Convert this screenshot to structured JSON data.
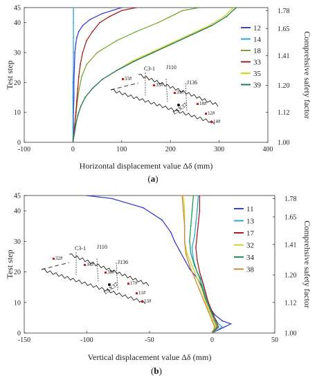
{
  "chart_data": [
    {
      "type": "line",
      "panel": "a",
      "caption_prefix": "(",
      "caption_letter": "a",
      "caption_suffix": ")",
      "xlabel": "Horizontal displacement value Δδ (mm)",
      "ylabel": "Test step",
      "y2label": "Comprehsive safety factor",
      "xlim": [
        -100,
        400
      ],
      "ylim": [
        0,
        45
      ],
      "xticks": [
        "-100",
        "0",
        "100",
        "200",
        "300",
        "400"
      ],
      "yticks": [
        "0",
        "10",
        "20",
        "30",
        "40",
        "45"
      ],
      "y2ticks": [
        {
          "step": 0,
          "label": "1.00"
        },
        {
          "step": 10,
          "label": "1.12"
        },
        {
          "step": 19,
          "label": "1.20"
        },
        {
          "step": 29,
          "label": "1.41"
        },
        {
          "step": 38,
          "label": "1.65"
        },
        {
          "step": 44,
          "label": "1.78"
        }
      ],
      "legend_position": "right",
      "series": [
        {
          "name": "12",
          "color": "#3a3fd6",
          "x": [
            0,
            1,
            1,
            2,
            2,
            3,
            4,
            6,
            8,
            12,
            20,
            35,
            60,
            100
          ],
          "y": [
            0,
            5,
            10,
            15,
            20,
            25,
            30,
            33,
            35,
            37,
            39,
            41,
            43,
            45
          ]
        },
        {
          "name": "14",
          "color": "#29a7d6",
          "x": [
            0,
            0,
            0,
            0,
            0,
            1,
            1,
            1,
            1,
            1,
            1
          ],
          "y": [
            0,
            5,
            10,
            15,
            20,
            25,
            30,
            35,
            40,
            43,
            45
          ]
        },
        {
          "name": "18",
          "color": "#7aa62e",
          "x": [
            0,
            2,
            4,
            6,
            8,
            10,
            13,
            18,
            28,
            50,
            90,
            130,
            175,
            200,
            225,
            260
          ],
          "y": [
            0,
            3,
            6,
            9,
            12,
            15,
            18,
            22,
            26,
            30,
            34,
            37,
            40,
            42,
            44,
            45
          ]
        },
        {
          "name": "33",
          "color": "#a51d1d",
          "x": [
            0,
            2,
            4,
            6,
            8,
            10,
            12,
            15,
            20,
            28,
            40,
            55,
            75,
            100,
            130
          ],
          "y": [
            0,
            3,
            6,
            10,
            14,
            18,
            22,
            26,
            30,
            34,
            37,
            40,
            42,
            44,
            45
          ]
        },
        {
          "name": "35",
          "color": "#d2d21d",
          "x": [
            0,
            3,
            6,
            10,
            16,
            25,
            40,
            60,
            90,
            120,
            160,
            200,
            240,
            280,
            310,
            330
          ],
          "y": [
            0,
            3,
            6,
            9,
            12,
            15,
            18,
            21,
            24,
            27,
            30,
            33,
            36,
            39,
            42,
            45
          ]
        },
        {
          "name": "39",
          "color": "#1d7a5a",
          "x": [
            0,
            3,
            6,
            10,
            16,
            25,
            40,
            60,
            90,
            125,
            165,
            205,
            245,
            285,
            315,
            335
          ],
          "y": [
            0,
            3,
            6,
            9,
            12,
            15,
            18,
            21,
            24,
            27,
            30,
            33,
            36,
            39,
            42,
            45
          ]
        }
      ],
      "inset": {
        "labels": [
          {
            "t": "C3-1",
            "kind": "insetlab"
          },
          {
            "t": "J110",
            "kind": "insetlab"
          },
          {
            "t": "J136",
            "kind": "insetlab"
          },
          {
            "t": "LSX37",
            "kind": "insetlab"
          }
        ],
        "points": [
          "33#",
          "35#",
          "39#",
          "18#",
          "12#",
          "14#"
        ]
      }
    },
    {
      "type": "line",
      "panel": "b",
      "caption_prefix": "(",
      "caption_letter": "b",
      "caption_suffix": ")",
      "xlabel": "Vertical displacement value Δδ (mm)",
      "ylabel": "Test step",
      "y2label": "Comprehsive safety factor",
      "xlim": [
        -150,
        50
      ],
      "ylim": [
        0,
        45
      ],
      "xticks": [
        "-150",
        "-100",
        "-50",
        "0",
        "50"
      ],
      "yticks": [
        "0",
        "10",
        "20",
        "30",
        "40",
        "45"
      ],
      "y2ticks": [
        {
          "step": 0,
          "label": "1.00"
        },
        {
          "step": 10,
          "label": "1.12"
        },
        {
          "step": 19,
          "label": "1.20"
        },
        {
          "step": 29,
          "label": "1.41"
        },
        {
          "step": 38,
          "label": "1.65"
        },
        {
          "step": 44,
          "label": "1.78"
        }
      ],
      "legend_position": "right",
      "series": [
        {
          "name": "11",
          "color": "#3a3fd6",
          "x": [
            0,
            10,
            15,
            8,
            2,
            -3,
            -6,
            -8,
            -12,
            -18,
            -22,
            -26,
            -30,
            -33,
            -40,
            -55,
            -80,
            -100
          ],
          "y": [
            0,
            2,
            3,
            4,
            6,
            9,
            12,
            15,
            18,
            21,
            24,
            27,
            30,
            33,
            37,
            41,
            44,
            45
          ]
        },
        {
          "name": "13",
          "color": "#29a7d6",
          "x": [
            0,
            8,
            5,
            2,
            -2,
            -4,
            -6,
            -8,
            -12,
            -15,
            -16,
            -14,
            -13,
            -12,
            -11
          ],
          "y": [
            0,
            2,
            3,
            5,
            8,
            11,
            14,
            17,
            20,
            24,
            28,
            32,
            36,
            40,
            45
          ]
        },
        {
          "name": "17",
          "color": "#a51d1d",
          "x": [
            0,
            5,
            3,
            0,
            -3,
            -5,
            -7,
            -10,
            -12,
            -13,
            -12,
            -11,
            -10,
            -10
          ],
          "y": [
            0,
            2,
            4,
            7,
            10,
            13,
            16,
            20,
            24,
            28,
            32,
            36,
            40,
            45
          ]
        },
        {
          "name": "32",
          "color": "#d2d21d",
          "x": [
            0,
            3,
            1,
            -2,
            -5,
            -8,
            -12,
            -16,
            -20,
            -22,
            -22,
            -22,
            -23
          ],
          "y": [
            0,
            2,
            4,
            7,
            10,
            14,
            18,
            22,
            26,
            30,
            35,
            40,
            45
          ]
        },
        {
          "name": "34",
          "color": "#1d9a5a",
          "x": [
            0,
            4,
            2,
            -1,
            -4,
            -7,
            -10,
            -14,
            -17,
            -18,
            -17,
            -16,
            -15
          ],
          "y": [
            0,
            2,
            4,
            7,
            10,
            14,
            18,
            22,
            26,
            30,
            35,
            40,
            45
          ]
        },
        {
          "name": "38",
          "color": "#c78a3a",
          "x": [
            0,
            2,
            0,
            -3,
            -6,
            -10,
            -14,
            -18,
            -21,
            -22,
            -22,
            -23,
            -24
          ],
          "y": [
            0,
            2,
            4,
            7,
            10,
            14,
            18,
            22,
            26,
            30,
            35,
            40,
            45
          ]
        }
      ],
      "inset": {
        "labels": [
          {
            "t": "C3-1",
            "kind": "insetlab"
          },
          {
            "t": "J110",
            "kind": "insetlab"
          },
          {
            "t": "J136",
            "kind": "insetlab"
          },
          {
            "t": "LSX37",
            "kind": "insetlab"
          }
        ],
        "points": [
          "32#",
          "34#",
          "38#",
          "17#",
          "11#",
          "13#"
        ]
      }
    }
  ]
}
